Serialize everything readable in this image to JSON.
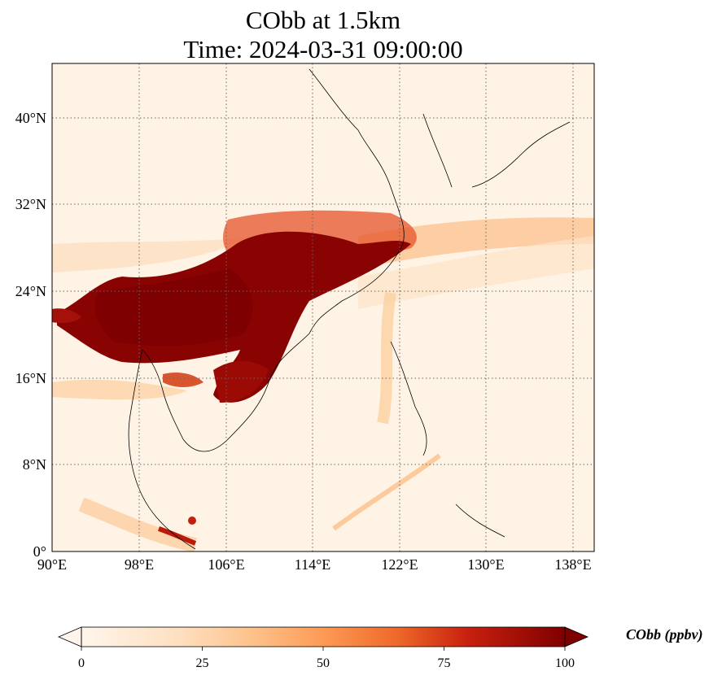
{
  "title_line1": "CObb at 1.5km",
  "title_line2": "Time: 2024-03-31 09:00:00",
  "map": {
    "lon_range": [
      90,
      140
    ],
    "lat_range": [
      0,
      45
    ],
    "grid": true,
    "x_ticks": [
      "90°E",
      "98°E",
      "106°E",
      "114°E",
      "122°E",
      "130°E",
      "138°E"
    ],
    "y_ticks": [
      "0°",
      "8°N",
      "16°N",
      "24°N",
      "32°N",
      "40°N"
    ]
  },
  "colorbar": {
    "label": "CObb (ppbv)",
    "ticks": [
      "0",
      "25",
      "50",
      "75",
      "100"
    ],
    "min": 0,
    "max": 100,
    "extend": "both",
    "colors": [
      "#fff5eb",
      "#fdd8b0",
      "#fdae6b",
      "#f16913",
      "#d94801",
      "#a50f05",
      "#7f0000"
    ]
  }
}
